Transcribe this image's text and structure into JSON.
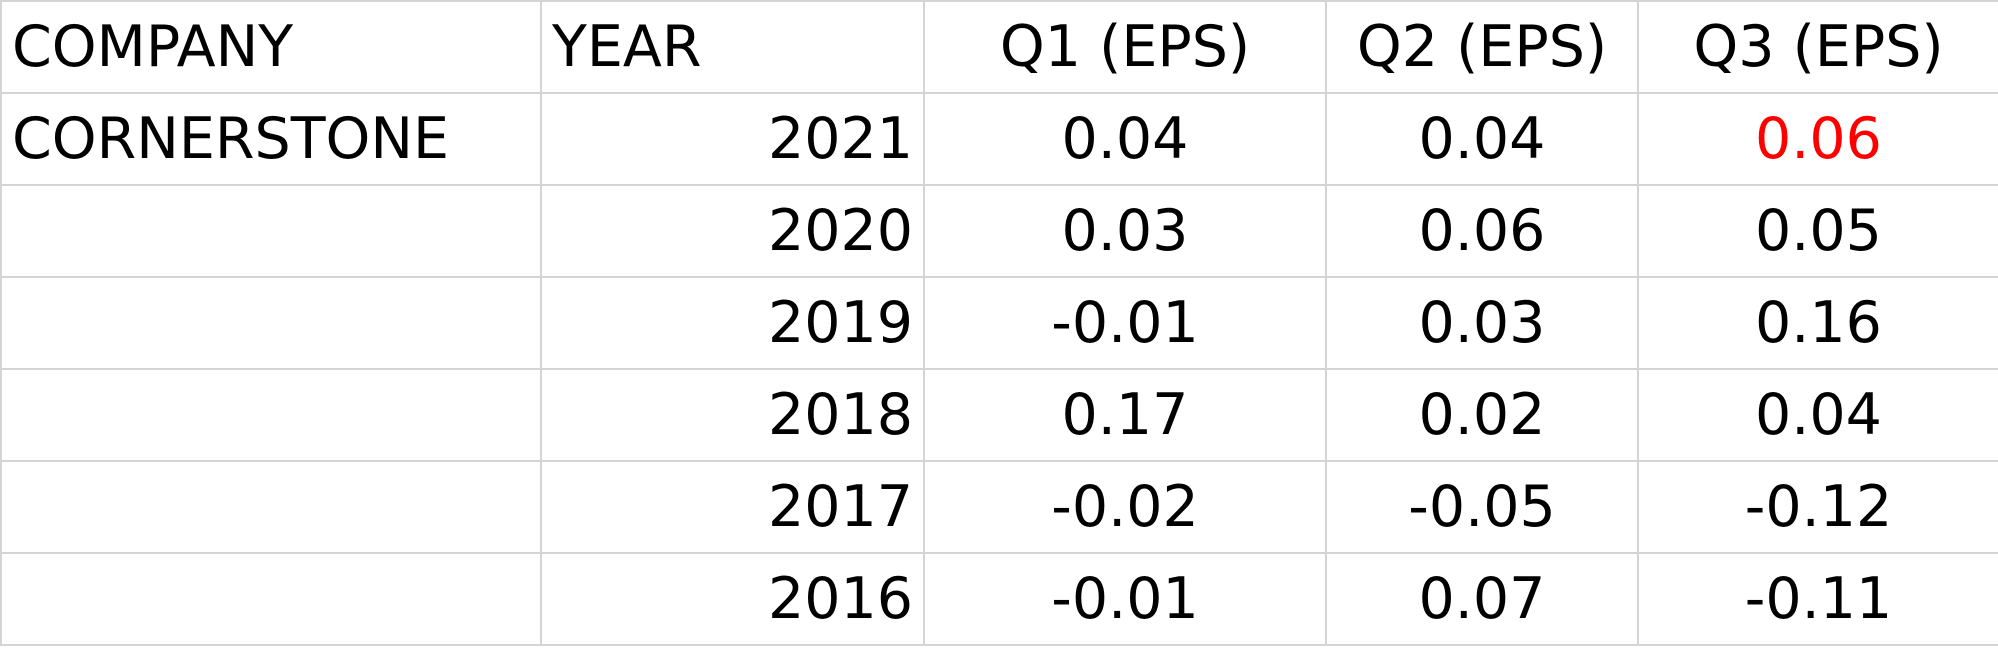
{
  "headers": {
    "company": "COMPANY",
    "year": "YEAR",
    "q1": "Q1 (EPS)",
    "q2": "Q2 (EPS)",
    "q3": "Q3 (EPS)"
  },
  "rows": [
    {
      "company": "CORNERSTONE",
      "year": "2021",
      "q1": "0.04",
      "q2": "0.04",
      "q3": "0.06"
    },
    {
      "company": "",
      "year": "2020",
      "q1": "0.03",
      "q2": "0.06",
      "q3": "0.05"
    },
    {
      "company": "",
      "year": "2019",
      "q1": "-0.01",
      "q2": "0.03",
      "q3": "0.16"
    },
    {
      "company": "",
      "year": "2018",
      "q1": "0.17",
      "q2": "0.02",
      "q3": "0.04"
    },
    {
      "company": "",
      "year": "2017",
      "q1": "-0.02",
      "q2": "-0.05",
      "q3": "-0.12"
    },
    {
      "company": "",
      "year": "2016",
      "q1": "-0.01",
      "q2": "0.07",
      "q3": "-0.11"
    }
  ],
  "highlight_color": "#ff0000"
}
